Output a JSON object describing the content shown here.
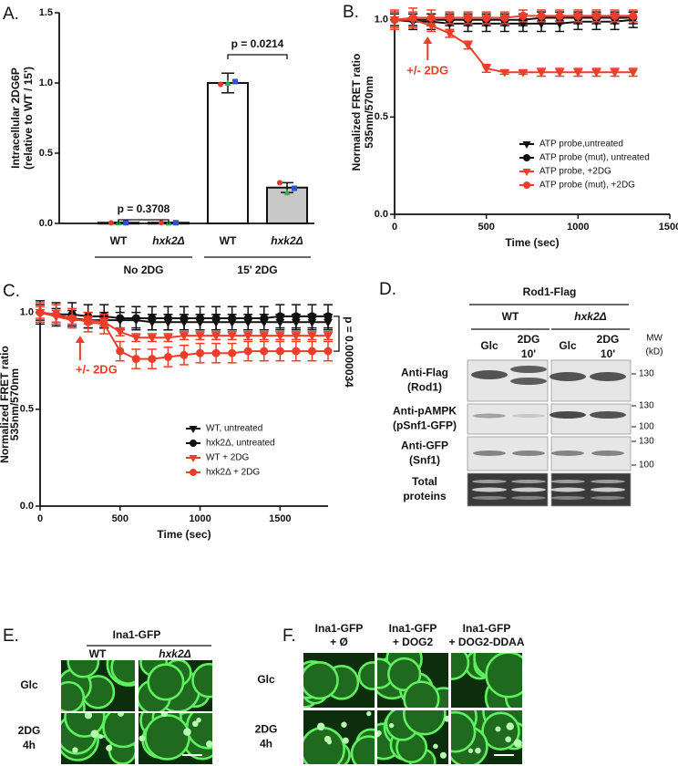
{
  "chart_data": [
    {
      "type": "bar",
      "label": "A.",
      "ylabel": [
        "Intracellular 2DG6P",
        "(relative to WT / 15')"
      ],
      "categories": [
        "WT",
        "hxk2Δ",
        "WT",
        "hxk2Δ"
      ],
      "groups": [
        "No 2DG",
        "15' 2DG"
      ],
      "values": [
        0.005,
        0.005,
        1.0,
        0.255
      ],
      "errors": [
        0.003,
        0.003,
        0.07,
        0.035
      ],
      "colors": [
        "#ffffff",
        "#c8c8c8",
        "#ffffff",
        "#c8c8c8"
      ],
      "replicates": [
        [
          0.004,
          0.006,
          0.005
        ],
        [
          0.006,
          0.004,
          0.005
        ],
        [
          0.99,
          1.0,
          1.01
        ],
        [
          0.29,
          0.22,
          0.25
        ]
      ],
      "replicate_colors": [
        "#e03a2a",
        "#2cb84a",
        "#3050d0"
      ],
      "annotations": [
        "p = 0.3708",
        "p = 0.0214"
      ],
      "ylim": [
        0,
        1.5
      ],
      "yticks": [
        {
          "value": 0,
          "label": "0.0"
        },
        {
          "value": 0.5,
          "label": "0.5"
        },
        {
          "value": 1,
          "label": "1.0"
        },
        {
          "value": 1.5,
          "label": "1.5"
        }
      ]
    },
    {
      "type": "line",
      "label": "B.",
      "xlabel": "Time (sec)",
      "ylabel": [
        "Normalized FRET ratio",
        "535nm/570nm"
      ],
      "x": [
        0,
        100,
        200,
        300,
        400,
        500,
        600,
        700,
        800,
        900,
        1000,
        1100,
        1200,
        1300
      ],
      "series": [
        {
          "name": "ATP probe,untreated",
          "color": "#111111",
          "marker": "triangle",
          "values": [
            1.0,
            0.99,
            0.99,
            0.98,
            0.98,
            0.98,
            0.98,
            0.98,
            0.98,
            0.98,
            0.99,
            0.99,
            0.99,
            1.0
          ],
          "errors": [
            0.04,
            0.04,
            0.04,
            0.04,
            0.04,
            0.04,
            0.04,
            0.04,
            0.04,
            0.04,
            0.04,
            0.04,
            0.04,
            0.04
          ]
        },
        {
          "name": "ATP probe (mut), untreated",
          "color": "#111111",
          "marker": "circle",
          "values": [
            1.0,
            1.0,
            1.0,
            1.0,
            1.0,
            1.0,
            1.0,
            1.0,
            1.01,
            1.01,
            1.01,
            1.01,
            1.01,
            1.01
          ],
          "errors": [
            0.03,
            0.03,
            0.03,
            0.03,
            0.03,
            0.03,
            0.03,
            0.03,
            0.03,
            0.03,
            0.03,
            0.03,
            0.03,
            0.03
          ]
        },
        {
          "name": "ATP probe, +2DG",
          "color": "#ee3e2a",
          "marker": "triangle",
          "values": [
            1.0,
            1.0,
            0.97,
            0.93,
            0.87,
            0.75,
            0.73,
            0.73,
            0.73,
            0.73,
            0.73,
            0.73,
            0.73,
            0.73
          ],
          "errors": [
            0.04,
            0.04,
            0.03,
            0.02,
            0.02,
            0.02,
            0.01,
            0.01,
            0.02,
            0.02,
            0.02,
            0.02,
            0.02,
            0.02
          ]
        },
        {
          "name": "ATP probe (mut), +2DG",
          "color": "#ee3e2a",
          "marker": "circle",
          "values": [
            1.0,
            1.01,
            1.01,
            1.01,
            1.01,
            1.01,
            1.01,
            1.02,
            1.02,
            1.02,
            1.02,
            1.02,
            1.02,
            1.02
          ],
          "errors": [
            0.05,
            0.05,
            0.04,
            0.03,
            0.03,
            0.03,
            0.03,
            0.03,
            0.03,
            0.03,
            0.03,
            0.03,
            0.03,
            0.03
          ]
        }
      ],
      "annotations": [
        {
          "text": "+/- 2DG",
          "x": 180
        }
      ],
      "xlim": [
        0,
        1500
      ],
      "xticks": [
        0,
        500,
        1000,
        1500
      ],
      "ylim": [
        0,
        1.05
      ],
      "yticks": [
        {
          "value": 0,
          "label": "0.0"
        },
        {
          "value": 0.5,
          "label": "0.5"
        },
        {
          "value": 1,
          "label": "1.0"
        }
      ]
    },
    {
      "type": "line",
      "label": "C.",
      "xlabel": "Time (sec)",
      "ylabel": [
        "Normalized FRET ratio",
        "535nm/570nm"
      ],
      "x": [
        0,
        100,
        200,
        300,
        400,
        500,
        600,
        700,
        800,
        900,
        1000,
        1100,
        1200,
        1300,
        1400,
        1500,
        1600,
        1700,
        1800
      ],
      "series": [
        {
          "name": "WT, untreated",
          "color": "#111111",
          "marker": "triangle",
          "values": [
            1.0,
            0.98,
            0.97,
            0.96,
            0.96,
            0.96,
            0.96,
            0.95,
            0.95,
            0.95,
            0.95,
            0.95,
            0.95,
            0.95,
            0.95,
            0.95,
            0.95,
            0.95,
            0.95
          ],
          "errors": [
            0.04,
            0.04,
            0.04,
            0.04,
            0.04,
            0.04,
            0.04,
            0.04,
            0.04,
            0.04,
            0.04,
            0.04,
            0.04,
            0.04,
            0.04,
            0.04,
            0.04,
            0.04,
            0.04
          ]
        },
        {
          "name": "hxk2Δ, untreated",
          "color": "#111111",
          "marker": "circle",
          "values": [
            1.0,
            0.99,
            0.99,
            0.98,
            0.98,
            0.97,
            0.97,
            0.97,
            0.97,
            0.97,
            0.97,
            0.97,
            0.97,
            0.97,
            0.97,
            0.98,
            0.98,
            0.98,
            0.98
          ],
          "errors": [
            0.06,
            0.06,
            0.06,
            0.06,
            0.06,
            0.06,
            0.06,
            0.06,
            0.06,
            0.06,
            0.06,
            0.06,
            0.06,
            0.06,
            0.06,
            0.06,
            0.06,
            0.06,
            0.06
          ]
        },
        {
          "name": "WT + 2DG",
          "color": "#ee3e2a",
          "marker": "triangle",
          "values": [
            1.0,
            0.98,
            0.96,
            0.96,
            0.95,
            0.9,
            0.87,
            0.87,
            0.87,
            0.88,
            0.88,
            0.88,
            0.88,
            0.88,
            0.88,
            0.88,
            0.88,
            0.88,
            0.88
          ],
          "errors": [
            0.03,
            0.03,
            0.02,
            0.02,
            0.02,
            0.02,
            0.02,
            0.02,
            0.02,
            0.02,
            0.02,
            0.02,
            0.02,
            0.02,
            0.02,
            0.02,
            0.02,
            0.02,
            0.02
          ]
        },
        {
          "name": "hxk2Δ + 2DG",
          "color": "#ee3e2a",
          "marker": "circle",
          "values": [
            1.0,
            0.99,
            0.97,
            0.95,
            0.94,
            0.8,
            0.76,
            0.76,
            0.77,
            0.78,
            0.79,
            0.79,
            0.79,
            0.8,
            0.8,
            0.8,
            0.8,
            0.8,
            0.8
          ],
          "errors": [
            0.05,
            0.05,
            0.05,
            0.05,
            0.05,
            0.05,
            0.05,
            0.05,
            0.05,
            0.05,
            0.05,
            0.05,
            0.05,
            0.05,
            0.05,
            0.05,
            0.05,
            0.05,
            0.05
          ]
        }
      ],
      "annotations": [
        {
          "text": "+/- 2DG",
          "x": 250
        }
      ],
      "significance": "p = 0.0000034",
      "xlim": [
        0,
        1800
      ],
      "xticks": [
        0,
        500,
        1000,
        1500
      ],
      "ylim": [
        0,
        1.05
      ],
      "yticks": [
        {
          "value": 0,
          "label": "0.0"
        },
        {
          "value": 0.5,
          "label": "0.5"
        },
        {
          "value": 1,
          "label": "1.0"
        }
      ]
    }
  ],
  "panel_d": {
    "label": "D.",
    "title": "Rod1-Flag",
    "strains": [
      "WT",
      "hxk2Δ"
    ],
    "lanes": [
      [
        "Glc"
      ],
      [
        "2DG",
        "10'"
      ],
      [
        "Glc"
      ],
      [
        "2DG",
        "10'"
      ]
    ],
    "mw_title": [
      "MW",
      "(kD)"
    ],
    "rows": [
      {
        "label": [
          "Anti-Flag",
          "(Rod1)"
        ],
        "mw": [
          130
        ]
      },
      {
        "label": [
          "Anti-pAMPK",
          "(pSnf1-GFP)"
        ],
        "mw": [
          130,
          100
        ]
      },
      {
        "label": [
          "Anti-GFP",
          "(Snf1)"
        ],
        "mw": [
          130,
          100
        ]
      },
      {
        "label": [
          "Total",
          "proteins"
        ],
        "mw": []
      }
    ]
  },
  "panel_e": {
    "label": "E.",
    "title": "Ina1-GFP",
    "columns": [
      "WT",
      "hxk2Δ"
    ],
    "rows": [
      [
        "Glc"
      ],
      [
        "2DG",
        "4h"
      ]
    ]
  },
  "panel_f": {
    "label": "F.",
    "columns": [
      [
        "Ina1-GFP",
        "+ Ø"
      ],
      [
        "Ina1-GFP",
        "+ DOG2"
      ],
      [
        "Ina1-GFP",
        "+ DOG2-DDAA"
      ]
    ],
    "rows": [
      [
        "Glc"
      ],
      [
        "2DG",
        "4h"
      ]
    ]
  }
}
